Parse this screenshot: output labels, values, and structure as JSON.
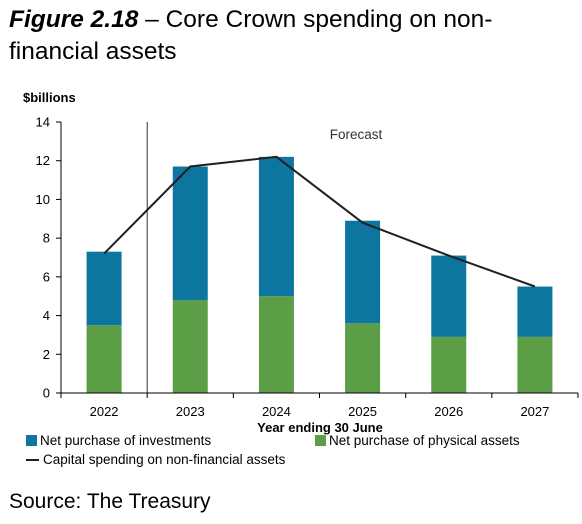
{
  "figure": {
    "number": "Figure 2.18",
    "title": " – Core Crown spending on non-financial assets",
    "source": "Source: The Treasury"
  },
  "chart_data": {
    "type": "bar",
    "stacked": true,
    "categories": [
      "2022",
      "2023",
      "2024",
      "2025",
      "2026",
      "2027"
    ],
    "series": [
      {
        "name": "Net purchase of physical assets",
        "type": "bar",
        "color": "#5b9e45",
        "values": [
          3.5,
          4.8,
          5.0,
          3.6,
          2.9,
          2.9
        ]
      },
      {
        "name": "Net purchase of investments",
        "type": "bar",
        "color": "#0d76a0",
        "values": [
          3.8,
          6.9,
          7.2,
          5.3,
          4.2,
          2.6
        ]
      },
      {
        "name": "Capital spending on non-financial assets",
        "type": "line",
        "color": "#231f20",
        "values": [
          7.2,
          11.7,
          12.2,
          8.8,
          7.1,
          5.5
        ]
      }
    ],
    "ylabel": "$billions",
    "xlabel": "Year ending 30 June",
    "ylim": [
      0,
      14
    ],
    "yticks": [
      0,
      2,
      4,
      6,
      8,
      10,
      12,
      14
    ],
    "annotation": "Forecast",
    "forecast_divider_after": "2022",
    "grid": false
  },
  "legend": {
    "investments": "Net purchase of investments",
    "physical": "Net purchase of physical assets",
    "capital": "Capital spending on non-financial assets"
  }
}
